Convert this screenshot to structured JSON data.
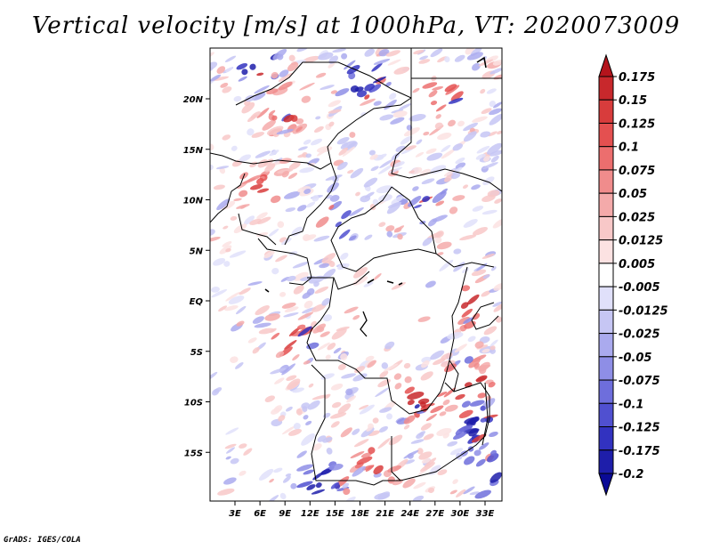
{
  "chart_data": {
    "type": "heatmap",
    "title": "Vertical velocity [m/s] at 1000hPa, VT: 2020073009",
    "x_ticks": [
      "3E",
      "6E",
      "9E",
      "12E",
      "15E",
      "18E",
      "21E",
      "24E",
      "27E",
      "30E",
      "33E"
    ],
    "y_ticks": [
      "20N",
      "15N",
      "10N",
      "5N",
      "EQ",
      "5S",
      "10S",
      "15S"
    ],
    "colorbar": {
      "levels": [
        "0.175",
        "0.15",
        "0.125",
        "0.1",
        "0.075",
        "0.05",
        "0.025",
        "0.0125",
        "0.005",
        "-0.005",
        "-0.0125",
        "-0.025",
        "-0.05",
        "-0.075",
        "-0.1",
        "-0.125",
        "-0.175",
        "-0.2"
      ],
      "colors": [
        "#b4141c",
        "#c8282c",
        "#d83c3c",
        "#e45050",
        "#ec6e6e",
        "#f08c8c",
        "#f4aaaa",
        "#f8c8c8",
        "#fce2e2",
        "#ffffff",
        "#e0e0fa",
        "#c6c6f4",
        "#aaaaee",
        "#8e8ee6",
        "#6e6edc",
        "#5050d0",
        "#3232c0",
        "#1e1eaa",
        "#0a0a96"
      ]
    },
    "xlabel": "",
    "ylabel": ""
  },
  "footer": "GrADS: IGES/COLA"
}
